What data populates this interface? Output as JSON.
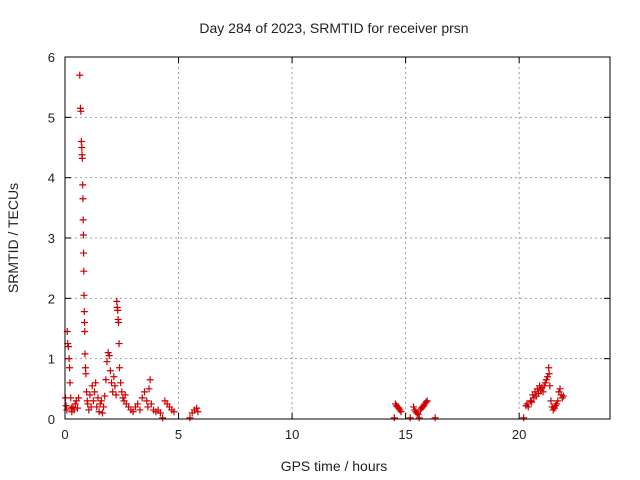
{
  "chart_data": {
    "type": "scatter",
    "title": "Day 284 of 2023, SRMTID for receiver prsn",
    "xlabel": "GPS time / hours",
    "ylabel": "SRMTID / TECUs",
    "xlim": [
      0,
      24
    ],
    "ylim": [
      0,
      6
    ],
    "xticks": [
      0,
      5,
      10,
      15,
      20
    ],
    "yticks": [
      0,
      1,
      2,
      3,
      4,
      5,
      6
    ],
    "xtick_labels": [
      "0",
      "5",
      "10",
      "15",
      "20"
    ],
    "ytick_labels": [
      "0",
      "1",
      "2",
      "3",
      "4",
      "5",
      "6"
    ],
    "grid": true,
    "marker": "+",
    "color": "#cc0000",
    "series": [
      {
        "name": "SRMTID",
        "points": [
          [
            0.02,
            0.35
          ],
          [
            0.05,
            0.22
          ],
          [
            0.08,
            0.15
          ],
          [
            0.1,
            1.45
          ],
          [
            0.12,
            1.25
          ],
          [
            0.15,
            1.2
          ],
          [
            0.18,
            1.0
          ],
          [
            0.2,
            0.85
          ],
          [
            0.22,
            0.6
          ],
          [
            0.25,
            0.35
          ],
          [
            0.28,
            0.18
          ],
          [
            0.3,
            0.12
          ],
          [
            0.35,
            0.2
          ],
          [
            0.4,
            0.15
          ],
          [
            0.45,
            0.25
          ],
          [
            0.5,
            0.3
          ],
          [
            0.55,
            0.18
          ],
          [
            0.6,
            0.35
          ],
          [
            0.65,
            5.7
          ],
          [
            0.68,
            5.15
          ],
          [
            0.7,
            5.1
          ],
          [
            0.72,
            4.6
          ],
          [
            0.74,
            4.5
          ],
          [
            0.75,
            4.38
          ],
          [
            0.76,
            4.32
          ],
          [
            0.78,
            3.88
          ],
          [
            0.79,
            3.65
          ],
          [
            0.8,
            3.3
          ],
          [
            0.81,
            3.05
          ],
          [
            0.82,
            2.75
          ],
          [
            0.83,
            2.45
          ],
          [
            0.84,
            2.05
          ],
          [
            0.85,
            1.78
          ],
          [
            0.86,
            1.6
          ],
          [
            0.87,
            1.45
          ],
          [
            0.88,
            1.08
          ],
          [
            0.9,
            0.85
          ],
          [
            0.92,
            0.75
          ],
          [
            0.95,
            0.45
          ],
          [
            0.98,
            0.3
          ],
          [
            1.0,
            0.25
          ],
          [
            1.05,
            0.15
          ],
          [
            1.1,
            0.4
          ],
          [
            1.15,
            0.2
          ],
          [
            1.2,
            0.55
          ],
          [
            1.25,
            0.3
          ],
          [
            1.3,
            0.45
          ],
          [
            1.35,
            0.6
          ],
          [
            1.4,
            0.2
          ],
          [
            1.45,
            0.35
          ],
          [
            1.5,
            0.12
          ],
          [
            1.55,
            0.25
          ],
          [
            1.6,
            0.3
          ],
          [
            1.65,
            0.1
          ],
          [
            1.7,
            0.2
          ],
          [
            1.75,
            0.38
          ],
          [
            1.8,
            0.65
          ],
          [
            1.85,
            0.95
          ],
          [
            1.9,
            1.1
          ],
          [
            1.95,
            1.05
          ],
          [
            2.0,
            0.8
          ],
          [
            2.05,
            0.6
          ],
          [
            2.1,
            0.45
          ],
          [
            2.15,
            0.7
          ],
          [
            2.2,
            0.55
          ],
          [
            2.25,
            0.4
          ],
          [
            2.28,
            1.95
          ],
          [
            2.3,
            1.85
          ],
          [
            2.32,
            1.8
          ],
          [
            2.34,
            1.65
          ],
          [
            2.36,
            1.6
          ],
          [
            2.38,
            1.25
          ],
          [
            2.4,
            0.85
          ],
          [
            2.45,
            0.6
          ],
          [
            2.5,
            0.45
          ],
          [
            2.55,
            0.35
          ],
          [
            2.6,
            0.3
          ],
          [
            2.65,
            0.4
          ],
          [
            2.7,
            0.25
          ],
          [
            2.8,
            0.2
          ],
          [
            2.9,
            0.15
          ],
          [
            3.0,
            0.12
          ],
          [
            3.1,
            0.2
          ],
          [
            3.2,
            0.25
          ],
          [
            3.3,
            0.15
          ],
          [
            3.4,
            0.35
          ],
          [
            3.5,
            0.45
          ],
          [
            3.6,
            0.3
          ],
          [
            3.65,
            0.2
          ],
          [
            3.7,
            0.5
          ],
          [
            3.75,
            0.65
          ],
          [
            3.8,
            0.25
          ],
          [
            3.9,
            0.15
          ],
          [
            4.0,
            0.12
          ],
          [
            4.1,
            0.15
          ],
          [
            4.2,
            0.1
          ],
          [
            4.3,
            0.02
          ],
          [
            4.4,
            0.3
          ],
          [
            4.5,
            0.25
          ],
          [
            4.6,
            0.2
          ],
          [
            4.7,
            0.15
          ],
          [
            4.8,
            0.12
          ],
          [
            5.5,
            0.02
          ],
          [
            5.6,
            0.1
          ],
          [
            5.7,
            0.15
          ],
          [
            5.8,
            0.18
          ],
          [
            5.85,
            0.12
          ],
          [
            14.5,
            0.02
          ],
          [
            14.55,
            0.25
          ],
          [
            14.6,
            0.22
          ],
          [
            14.65,
            0.2
          ],
          [
            14.7,
            0.18
          ],
          [
            14.75,
            0.15
          ],
          [
            14.8,
            0.12
          ],
          [
            15.2,
            0.02
          ],
          [
            15.35,
            0.2
          ],
          [
            15.4,
            0.15
          ],
          [
            15.45,
            0.12
          ],
          [
            15.5,
            0.1
          ],
          [
            15.55,
            0.08
          ],
          [
            15.6,
            0.02
          ],
          [
            15.65,
            0.15
          ],
          [
            15.7,
            0.18
          ],
          [
            15.75,
            0.2
          ],
          [
            15.8,
            0.22
          ],
          [
            15.85,
            0.25
          ],
          [
            15.9,
            0.28
          ],
          [
            15.95,
            0.3
          ],
          [
            16.3,
            0.02
          ],
          [
            20.2,
            0.02
          ],
          [
            20.3,
            0.22
          ],
          [
            20.35,
            0.25
          ],
          [
            20.4,
            0.2
          ],
          [
            20.5,
            0.3
          ],
          [
            20.55,
            0.28
          ],
          [
            20.6,
            0.4
          ],
          [
            20.65,
            0.35
          ],
          [
            20.7,
            0.45
          ],
          [
            20.75,
            0.38
          ],
          [
            20.8,
            0.5
          ],
          [
            20.85,
            0.42
          ],
          [
            20.9,
            0.55
          ],
          [
            20.95,
            0.48
          ],
          [
            21.0,
            0.52
          ],
          [
            21.05,
            0.45
          ],
          [
            21.1,
            0.55
          ],
          [
            21.15,
            0.6
          ],
          [
            21.2,
            0.65
          ],
          [
            21.25,
            0.7
          ],
          [
            21.3,
            0.85
          ],
          [
            21.32,
            0.75
          ],
          [
            21.35,
            0.55
          ],
          [
            21.4,
            0.3
          ],
          [
            21.45,
            0.2
          ],
          [
            21.5,
            0.15
          ],
          [
            21.55,
            0.18
          ],
          [
            21.6,
            0.22
          ],
          [
            21.65,
            0.25
          ],
          [
            21.7,
            0.3
          ],
          [
            21.75,
            0.45
          ],
          [
            21.8,
            0.5
          ],
          [
            21.85,
            0.4
          ],
          [
            21.9,
            0.35
          ],
          [
            21.95,
            0.38
          ]
        ]
      }
    ]
  }
}
